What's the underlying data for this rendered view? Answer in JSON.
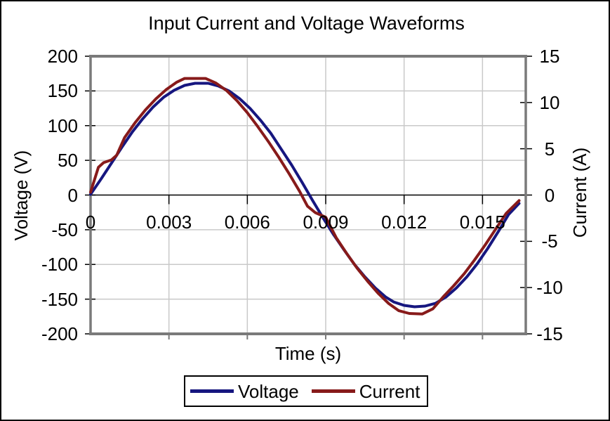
{
  "chart_data": {
    "type": "line",
    "title": "Input Current and Voltage Waveforms",
    "xlabel": "Time (s)",
    "ylabel_left": "Voltage (V)",
    "ylabel_right": "Current (A)",
    "grid": true,
    "legend_position": "bottom",
    "x_axis": {
      "min": 0,
      "max": 0.016656,
      "ticks": [
        0,
        0.003,
        0.006,
        0.009,
        0.012,
        0.015
      ],
      "tick_labels": [
        "0",
        "0.003",
        "0.006",
        "0.009",
        "0.012",
        "0.015"
      ]
    },
    "y_axis_left": {
      "min": -200,
      "max": 200,
      "ticks": [
        200,
        150,
        100,
        50,
        0,
        -50,
        -100,
        -150,
        -200
      ],
      "tick_labels": [
        "200",
        "150",
        "100",
        "50",
        "0",
        "-50",
        "-100",
        "-150",
        "-200"
      ]
    },
    "y_axis_right": {
      "min": -15,
      "max": 15,
      "ticks": [
        15,
        10,
        5,
        0,
        -5,
        -10,
        -15
      ],
      "tick_labels": [
        "15",
        "10",
        "5",
        "0",
        "-5",
        "-10",
        "-15"
      ]
    },
    "colors": {
      "voltage": "#16167F",
      "current": "#871A1A",
      "grid": "#C9C9C9",
      "plot_border": "#7A7A7A",
      "axis_line": "#000000",
      "text": "#000000",
      "background": "#FFFFFF"
    },
    "series": [
      {
        "name": "Voltage",
        "axis": "left",
        "units": "V",
        "color": "#16167F",
        "points": [
          [
            0,
            1
          ],
          [
            0.0004,
            23
          ],
          [
            0.0008,
            46
          ],
          [
            0.0012,
            69
          ],
          [
            0.0016,
            91
          ],
          [
            0.002,
            110
          ],
          [
            0.0024,
            127
          ],
          [
            0.0028,
            141
          ],
          [
            0.0032,
            151
          ],
          [
            0.0036,
            158
          ],
          [
            0.004,
            161
          ],
          [
            0.0045,
            161
          ],
          [
            0.0049,
            157
          ],
          [
            0.0053,
            150
          ],
          [
            0.0057,
            139
          ],
          [
            0.0061,
            125
          ],
          [
            0.0065,
            108
          ],
          [
            0.0069,
            89
          ],
          [
            0.0073,
            66
          ],
          [
            0.0077,
            43
          ],
          [
            0.0081,
            18
          ],
          [
            0.0085,
            -8
          ],
          [
            0.0089,
            -33
          ],
          [
            0.0093,
            -57
          ],
          [
            0.0097,
            -79
          ],
          [
            0.0101,
            -100
          ],
          [
            0.0105,
            -118
          ],
          [
            0.0109,
            -134
          ],
          [
            0.0113,
            -147
          ],
          [
            0.0116,
            -154
          ],
          [
            0.012,
            -159
          ],
          [
            0.0124,
            -161
          ],
          [
            0.0128,
            -160
          ],
          [
            0.0132,
            -156
          ],
          [
            0.0136,
            -147
          ],
          [
            0.014,
            -134
          ],
          [
            0.0144,
            -118
          ],
          [
            0.0148,
            -99
          ],
          [
            0.0152,
            -77
          ],
          [
            0.0156,
            -53
          ],
          [
            0.016,
            -28
          ],
          [
            0.0164,
            -12
          ]
        ]
      },
      {
        "name": "Current",
        "axis": "right",
        "units": "A",
        "color": "#871A1A",
        "points": [
          [
            0,
            0.3
          ],
          [
            0.0003,
            3.0
          ],
          [
            0.0005,
            3.5
          ],
          [
            0.0008,
            3.8
          ],
          [
            0.001,
            4.3
          ],
          [
            0.0013,
            6.2
          ],
          [
            0.0017,
            7.8
          ],
          [
            0.0021,
            9.2
          ],
          [
            0.0025,
            10.4
          ],
          [
            0.0029,
            11.4
          ],
          [
            0.0033,
            12.2
          ],
          [
            0.0036,
            12.6
          ],
          [
            0.0044,
            12.6
          ],
          [
            0.0048,
            12.1
          ],
          [
            0.0052,
            11.3
          ],
          [
            0.0056,
            10.2
          ],
          [
            0.006,
            8.9
          ],
          [
            0.0064,
            7.4
          ],
          [
            0.0068,
            5.8
          ],
          [
            0.0072,
            4.1
          ],
          [
            0.0076,
            2.3
          ],
          [
            0.008,
            0.4
          ],
          [
            0.0083,
            -1.2
          ],
          [
            0.0086,
            -1.9
          ],
          [
            0.009,
            -2.4
          ],
          [
            0.0094,
            -4.6
          ],
          [
            0.0098,
            -6.3
          ],
          [
            0.0102,
            -7.9
          ],
          [
            0.0106,
            -9.3
          ],
          [
            0.011,
            -10.6
          ],
          [
            0.0114,
            -11.7
          ],
          [
            0.0118,
            -12.5
          ],
          [
            0.0122,
            -12.8
          ],
          [
            0.0127,
            -12.85
          ],
          [
            0.0131,
            -12.3
          ],
          [
            0.0135,
            -11.0
          ],
          [
            0.0139,
            -9.8
          ],
          [
            0.0143,
            -8.5
          ],
          [
            0.0147,
            -7.0
          ],
          [
            0.0151,
            -5.4
          ],
          [
            0.0155,
            -3.7
          ],
          [
            0.0159,
            -2.0
          ],
          [
            0.0164,
            -0.6
          ]
        ]
      }
    ]
  }
}
